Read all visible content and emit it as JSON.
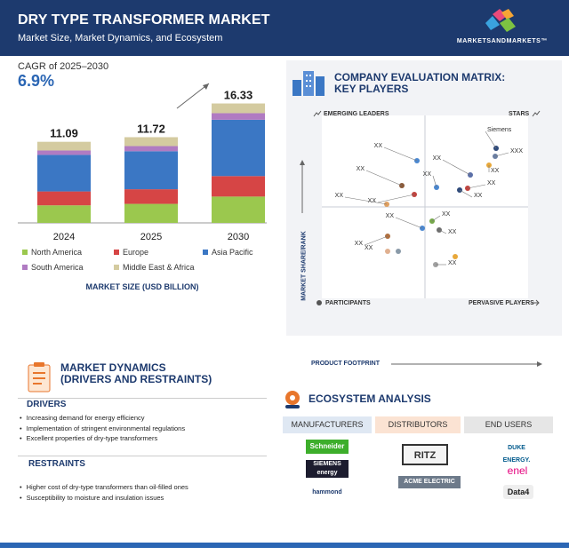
{
  "header": {
    "title": "DRY TYPE TRANSFORMER MARKET",
    "subtitle": "Market Size, Market Dynamics, and Ecosystem",
    "logo_text": "MARKETSANDMARKETS™"
  },
  "market_size": {
    "cagr_label": "CAGR of 2025–2030",
    "cagr_value": "6.9%",
    "axis_caption": "MARKET SIZE (USD BILLION)",
    "colors": {
      "North America": "#9bc84e",
      "Europe": "#d64545",
      "Asia Pacific": "#3b77c4",
      "South America": "#b07bc2",
      "Middle East & Africa": "#d4cba0"
    }
  },
  "chart_data": {
    "type": "bar",
    "stacked": true,
    "categories": [
      "2024",
      "2025",
      "2030"
    ],
    "totals": [
      "11.09",
      "11.72",
      "16.33"
    ],
    "series": [
      {
        "name": "North America",
        "values": [
          2.4,
          2.6,
          3.6
        ]
      },
      {
        "name": "Europe",
        "values": [
          1.9,
          2.0,
          2.8
        ]
      },
      {
        "name": "Asia Pacific",
        "values": [
          5.0,
          5.2,
          7.7
        ]
      },
      {
        "name": "South America",
        "values": [
          0.6,
          0.7,
          0.9
        ]
      },
      {
        "name": "Middle East & Africa",
        "values": [
          1.19,
          1.22,
          1.33
        ]
      }
    ],
    "legend": [
      "North America",
      "Europe",
      "Asia Pacific",
      "South America",
      "Middle East & Africa"
    ],
    "xlabel": "MARKET SIZE (USD BILLION)",
    "ylim": [
      0,
      17
    ]
  },
  "matrix": {
    "title_line1": "COMPANY EVALUATION MATRIX:",
    "title_line2": "KEY PLAYERS",
    "emerging": "EMERGING LEADERS",
    "stars": "STARS",
    "participants": "PARTICIPANTS",
    "pervasive": "PERVASIVE PLAYERS",
    "y_axis": "MARKET SHARE/RANK",
    "x_axis": "PRODUCT FOOTPRINT",
    "players": [
      {
        "label": "Siemens",
        "color": "#2f4a7a"
      },
      {
        "label": "XXX",
        "color": "#6b7fa3"
      },
      {
        "label": "XX",
        "color": "#e8a83a"
      },
      {
        "label": "XX",
        "color": "#5b6fa8"
      },
      {
        "label": "XX",
        "color": "#c0443f"
      },
      {
        "label": "XX",
        "color": "#4a87d0"
      },
      {
        "label": "XX",
        "color": "#2f4a7a"
      },
      {
        "label": "XX",
        "color": "#4a87d0"
      },
      {
        "label": "XX",
        "color": "#8a5a3a"
      },
      {
        "label": "XX",
        "color": "#c0443f"
      },
      {
        "label": "XX",
        "color": "#e0a060"
      },
      {
        "label": "XX",
        "color": "#76a84a"
      },
      {
        "label": "XX",
        "color": "#4a87d0"
      },
      {
        "label": "XX",
        "color": "#6e6e6e"
      },
      {
        "label": "XX",
        "color": "#b07040"
      },
      {
        "label": "XX",
        "color": "#e0b090"
      },
      {
        "label": "XX",
        "color": "#8a9aa8"
      },
      {
        "label": "XX",
        "color": "#e8a83a"
      },
      {
        "label": "XX",
        "color": "#a0a0a0"
      }
    ]
  },
  "dynamics": {
    "title_line1": "MARKET DYNAMICS",
    "title_line2": "(DRIVERS AND RESTRAINTS)",
    "drivers_label": "DRIVERS",
    "drivers": [
      "Increasing demand for energy efficiency",
      "Implementation of stringent environmental regulations",
      "Excellent properties of dry-type transformers"
    ],
    "restraints_label": "RESTRAINTS",
    "restraints": [
      "Higher cost of dry-type transformers than oil-filled ones",
      "Susceptibility to moisture and insulation issues"
    ]
  },
  "ecosystem": {
    "title": "ECOSYSTEM ANALYSIS",
    "tabs": [
      "MANUFACTURERS",
      "DISTRIBUTORS",
      "END USERS"
    ],
    "manufacturers": [
      "Schneider",
      "SIEMENS energy",
      "hammond"
    ],
    "distributors": [
      "RITZ",
      "ACME ELECTRIC"
    ],
    "end_users": [
      "DUKE ENERGY.",
      "enel",
      "Data4"
    ]
  }
}
